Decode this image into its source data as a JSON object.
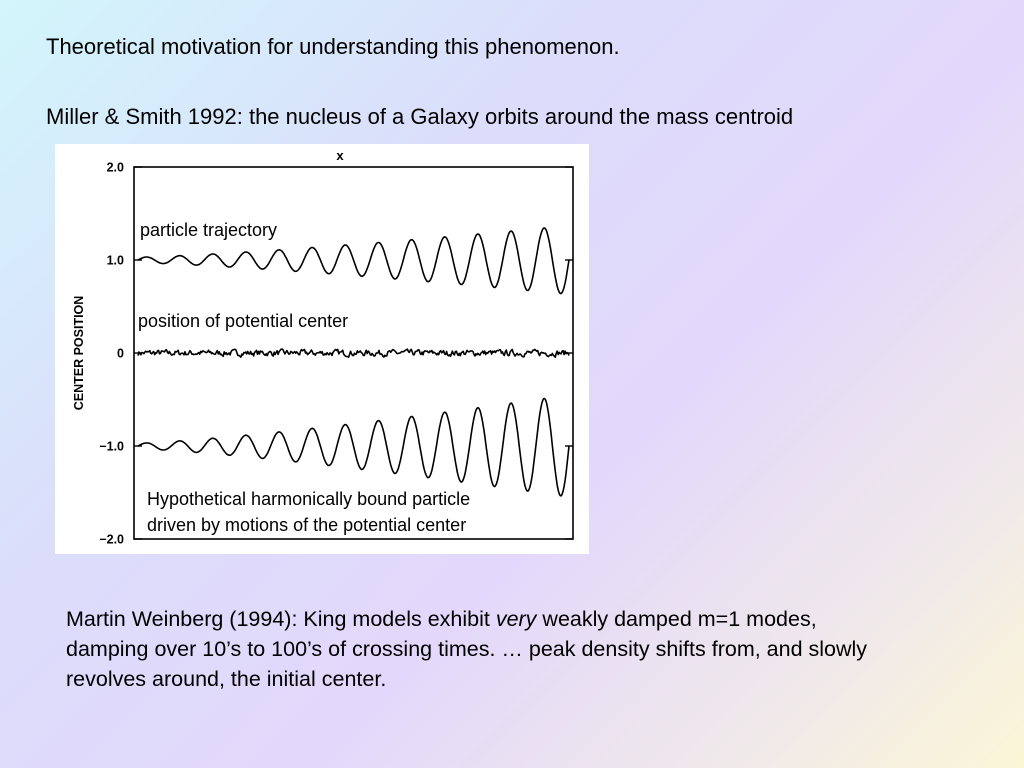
{
  "slide": {
    "title": "Theoretical motivation for understanding this phenomenon.",
    "reference": "Miller & Smith 1992:  the nucleus of a Galaxy orbits around the mass centroid",
    "paragraph": {
      "part1": "Martin Weinberg (1994): King models exhibit ",
      "emphasis": "very",
      "part2": " weakly damped m=1 modes,",
      "line2": "damping over 10’s to 100’s of crossing times.  … peak density shifts from, and slowly",
      "line3": "revolves around, the initial center."
    }
  },
  "chart_data": {
    "type": "line",
    "title": "",
    "top_marker": "x",
    "ylabel": "CENTER POSITION",
    "xlabel": "",
    "ylim": [
      -2.0,
      2.0
    ],
    "yticks": [
      2.0,
      1.0,
      0,
      -1.0,
      -2.0
    ],
    "ytick_labels": [
      "2.0",
      "1.0",
      "0",
      "−1.0",
      "−2.0"
    ],
    "grid": false,
    "annotations": [
      "particle trajectory",
      "position of potential center",
      "Hypothetical harmonically bound particle",
      "driven by motions of the potential center"
    ],
    "series": [
      {
        "name": "particle trajectory",
        "offset": 1.0,
        "cycles": 13,
        "amp_start": 0.03,
        "amp_end": 0.37
      },
      {
        "name": "position of potential center",
        "offset": 0.0,
        "noise_amp": 0.035
      },
      {
        "name": "",
        "offset": -1.0,
        "cycles": 13,
        "amp_start": 0.03,
        "amp_end": 0.55
      }
    ]
  }
}
